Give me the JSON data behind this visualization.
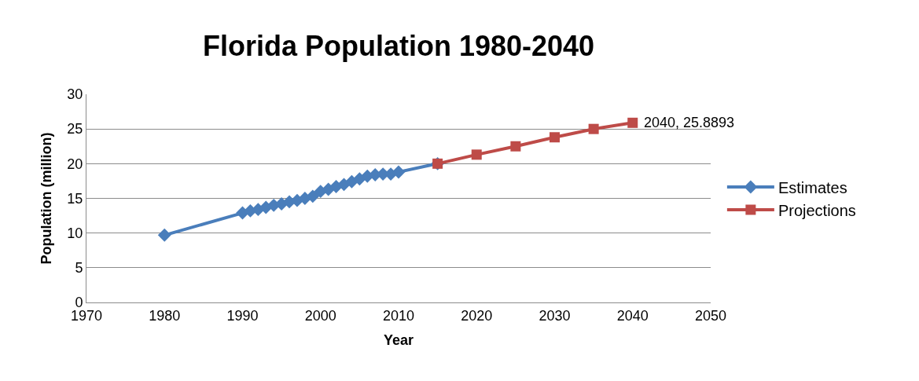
{
  "chart_data": {
    "type": "line",
    "title": "Florida Population 1980-2040",
    "xlabel": "Year",
    "ylabel": "Population (million)",
    "xlim": [
      1970,
      2050
    ],
    "xticks": [
      1970,
      1980,
      1990,
      2000,
      2010,
      2020,
      2030,
      2040,
      2050
    ],
    "ylim": [
      0,
      30
    ],
    "yticks": [
      0,
      5,
      10,
      15,
      20,
      25,
      30
    ],
    "grid": "y",
    "legend": "right",
    "series": [
      {
        "name": "Estimates",
        "color": "#4a7ebb",
        "marker": "diamond",
        "x": [
          1980,
          1990,
          1991,
          1992,
          1993,
          1994,
          1995,
          1996,
          1997,
          1998,
          1999,
          2000,
          2001,
          2002,
          2003,
          2004,
          2005,
          2006,
          2007,
          2008,
          2009,
          2010,
          2015
        ],
        "values": [
          9.7,
          12.9,
          13.2,
          13.4,
          13.7,
          14.0,
          14.2,
          14.5,
          14.7,
          15.0,
          15.3,
          16.0,
          16.3,
          16.7,
          17.0,
          17.4,
          17.8,
          18.2,
          18.4,
          18.5,
          18.5,
          18.8,
          20.0
        ]
      },
      {
        "name": "Projections",
        "color": "#be4b48",
        "marker": "square",
        "x": [
          2015,
          2020,
          2025,
          2030,
          2035,
          2040
        ],
        "values": [
          20.0,
          21.3,
          22.5,
          23.8,
          25.0,
          25.8893
        ]
      }
    ],
    "annotations": [
      {
        "text": "2040, 25.8893",
        "x": 2040,
        "y": 25.8893
      }
    ]
  }
}
